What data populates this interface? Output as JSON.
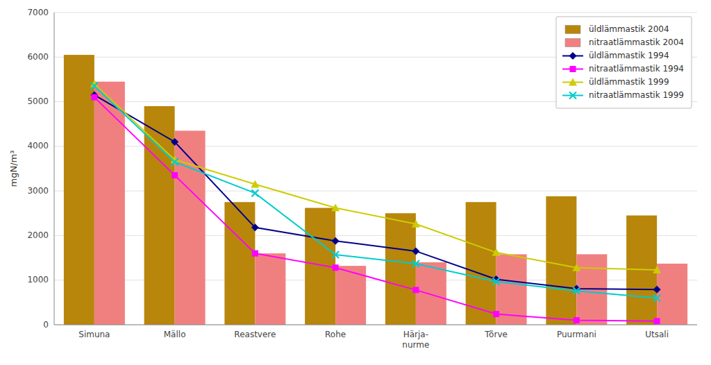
{
  "chart_data": {
    "type": "bar",
    "ylabel": "mgN/m³",
    "categories": [
      "Simuna",
      "Mällo",
      "Reastvere",
      "Rohe",
      "Härja-\nnurme",
      "Tõrve",
      "Puurmani",
      "Utsali"
    ],
    "series": [
      {
        "name": "üldlämmastik 2004",
        "type": "bar",
        "color": "#b8860b",
        "values": [
          6050,
          4900,
          2750,
          2620,
          2500,
          2750,
          2880,
          2450
        ]
      },
      {
        "name": "nitraatlämmastik 2004",
        "type": "bar",
        "color": "#f08080",
        "values": [
          5450,
          4350,
          1600,
          1320,
          1400,
          1580,
          1580,
          1370
        ]
      },
      {
        "name": "üldlämmastik 1994",
        "type": "line",
        "color": "#00008b",
        "marker": "diamond",
        "values": [
          5150,
          4100,
          2180,
          1880,
          1650,
          1020,
          810,
          790
        ]
      },
      {
        "name": "nitraatlämmastik 1994",
        "type": "line",
        "color": "#ff00ff",
        "marker": "square",
        "values": [
          5100,
          3350,
          1600,
          1280,
          780,
          240,
          100,
          80
        ]
      },
      {
        "name": "üldlämmastik 1999",
        "type": "line",
        "color": "#cccc00",
        "marker": "triangle",
        "values": [
          5400,
          3700,
          3150,
          2620,
          2260,
          1620,
          1280,
          1230
        ]
      },
      {
        "name": "nitraatlämmastik 1999",
        "type": "line",
        "color": "#00cccc",
        "marker": "x",
        "values": [
          5350,
          3650,
          2950,
          1570,
          1370,
          970,
          760,
          600
        ]
      }
    ],
    "ylim": [
      0,
      7000
    ],
    "yticks": [
      0,
      1000,
      2000,
      3000,
      4000,
      5000,
      6000,
      7000
    ],
    "grid": true,
    "legend": "upper right"
  }
}
